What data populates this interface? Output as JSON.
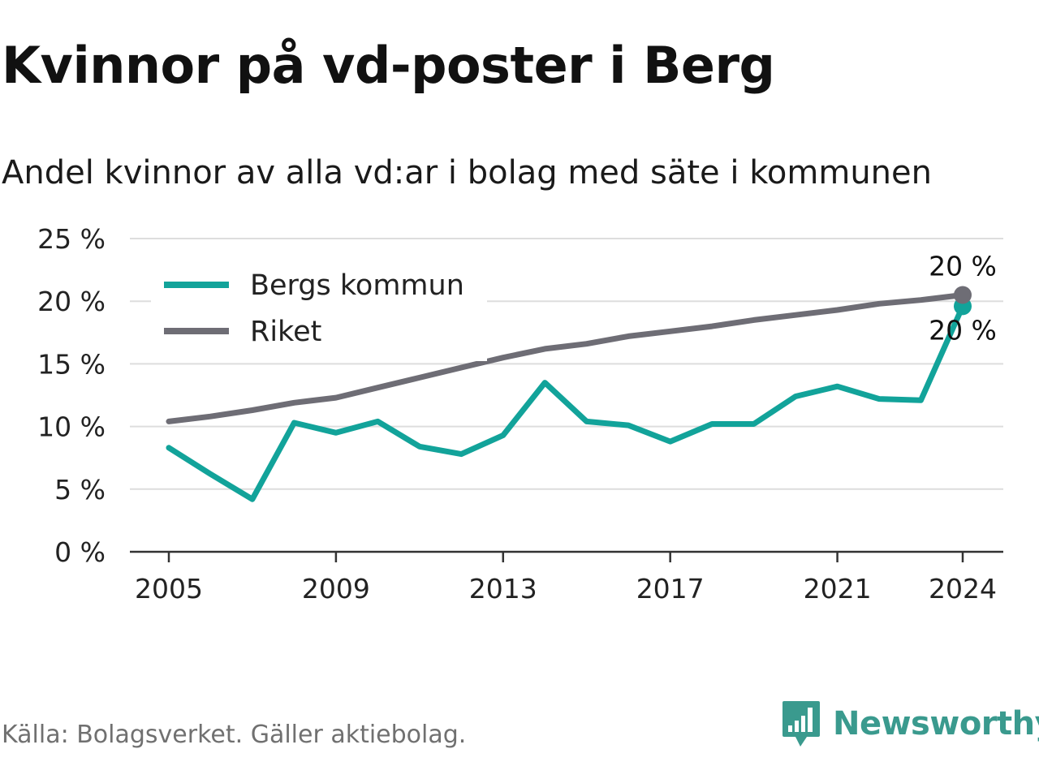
{
  "title": "Kvinnor på vd-poster i Berg",
  "subtitle": "Andel kvinnor av alla vd:ar i bolag med säte i kommunen",
  "footer": "Källa: Bolagsverket. Gäller aktiebolag.",
  "brand": {
    "name": "Newsworthy",
    "icon": "newsworthy-logo-icon"
  },
  "colors": {
    "bergs": "#12a39a",
    "riket": "#6e6d75",
    "grid": "#dddddd",
    "axis": "#333333"
  },
  "chart_data": {
    "type": "line",
    "title": "Kvinnor på vd-poster i Berg",
    "subtitle": "Andel kvinnor av alla vd:ar i bolag med säte i kommunen",
    "xlabel": "",
    "ylabel": "",
    "x": [
      2005,
      2006,
      2007,
      2008,
      2009,
      2010,
      2011,
      2012,
      2013,
      2014,
      2015,
      2016,
      2017,
      2018,
      2019,
      2020,
      2021,
      2022,
      2023,
      2024
    ],
    "x_ticks": [
      2005,
      2009,
      2013,
      2017,
      2021,
      2024
    ],
    "x_tick_labels": [
      "2005",
      "2009",
      "2013",
      "2017",
      "2021",
      "2024"
    ],
    "ylim": [
      0,
      25
    ],
    "y_ticks": [
      0,
      5,
      10,
      15,
      20,
      25
    ],
    "y_tick_labels": [
      "0 %",
      "5 %",
      "10 %",
      "15 %",
      "20 %",
      "25 %"
    ],
    "grid": true,
    "legend_position": "top-left",
    "series": [
      {
        "name": "Bergs kommun",
        "key": "bergs",
        "values": [
          8.3,
          6.2,
          4.2,
          10.3,
          9.5,
          10.4,
          8.4,
          7.8,
          9.3,
          13.5,
          10.4,
          10.1,
          8.8,
          10.2,
          10.2,
          12.4,
          13.2,
          12.2,
          12.1,
          19.6
        ],
        "end_label": "20 %",
        "end_label_position": "below"
      },
      {
        "name": "Riket",
        "key": "riket",
        "values": [
          10.4,
          10.8,
          11.3,
          11.9,
          12.3,
          13.1,
          13.9,
          14.7,
          15.5,
          16.2,
          16.6,
          17.2,
          17.6,
          18.0,
          18.5,
          18.9,
          19.3,
          19.8,
          20.1,
          20.5
        ],
        "end_label": "20 %",
        "end_label_position": "above"
      }
    ]
  }
}
